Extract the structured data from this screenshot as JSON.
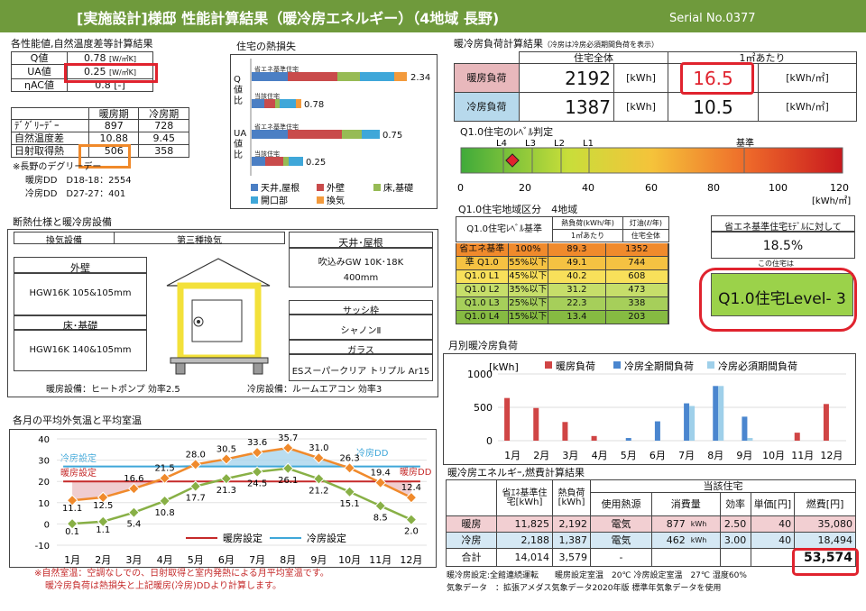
{
  "header": {
    "title": "[実施設計]様邸 性能計算結果（暖冷房エネルギー）（4地域 長野)",
    "serial": "Serial No.0377"
  },
  "perf": {
    "title": "各性能値,自然温度差等計算結果",
    "rows": [
      {
        "label": "Q値",
        "value": "0.78",
        "unit": "[W/㎡K]"
      },
      {
        "label": "UA値",
        "value": "0.25",
        "unit": "[W/㎡K]"
      },
      {
        "label": "ηAC値",
        "value": "0.8",
        "unit": "[-]"
      }
    ]
  },
  "period": {
    "headers": [
      "",
      "暖房期",
      "冷房期"
    ],
    "rows": [
      [
        "ﾃﾞｸﾞﾘｰﾃﾞｰ",
        "897",
        "728"
      ],
      [
        "自然温度差",
        "10.88",
        "9.45"
      ],
      [
        "日射取得熱",
        "506",
        "358"
      ]
    ],
    "note": "※長野のデグリーデー",
    "dd_heat": "暖房DD　D18-18：2554",
    "dd_cool": "冷房DD　D27-27：401"
  },
  "heatloss": {
    "title": "住宅の熱損失",
    "q_label": "Q値比",
    "ua_label": "UA値比",
    "bars": [
      {
        "name": "省エネ基準住宅",
        "value": "2.34"
      },
      {
        "name": "当該住宅",
        "value": "0.78"
      },
      {
        "name": "省エネ基準住宅",
        "value": "0.75"
      },
      {
        "name": "当該住宅",
        "value": "0.25"
      }
    ],
    "legend": [
      "天井,屋根",
      "外壁",
      "床,基礎",
      "開口部",
      "換気"
    ],
    "colors": {
      "ceiling": "#4b7fc4",
      "wall": "#c94b4b",
      "floor": "#97bb55",
      "opening": "#3fa7d9",
      "vent": "#f39a3c"
    }
  },
  "load": {
    "title": "暖冷房負荷計算結果",
    "note": "（冷房は冷房必須期間負荷を表示）",
    "col1": "住宅全体",
    "col2": "1㎡あたり",
    "rows": [
      {
        "label": "暖房負荷",
        "total": "2192",
        "unit": "[kWh]",
        "per": "16.5",
        "perunit": "[kWh/㎡]"
      },
      {
        "label": "冷房負荷",
        "total": "1387",
        "unit": "[kWh]",
        "per": "10.5",
        "perunit": "[kWh/㎡]"
      }
    ]
  },
  "level": {
    "title": "Q1.0住宅のﾚﾍﾞﾙ判定",
    "marks": [
      "L4",
      "L3",
      "L2",
      "L1"
    ],
    "base": "基準",
    "ticks": [
      "0",
      "20",
      "40",
      "60",
      "80",
      "100",
      "120"
    ],
    "unit": "[kWh/㎡]",
    "marker_value": 16.5
  },
  "q1": {
    "title": "Q1.0住宅地域区分",
    "region": "4地域",
    "headers": [
      "Q1.0住宅ﾚﾍﾞﾙ基準",
      "熱負荷(kWh/年)",
      "灯油(ℓ/年)"
    ],
    "sub": [
      "1㎡あたり",
      "住宅全体"
    ],
    "rows": [
      [
        "省エネ基準",
        "100%",
        "89.3",
        "1352"
      ],
      [
        "準 Q1.0",
        "55%以下",
        "49.1",
        "744"
      ],
      [
        "Q1.0 L1",
        "45%以下",
        "40.2",
        "608"
      ],
      [
        "Q1.0 L2",
        "35%以下",
        "31.2",
        "473"
      ],
      [
        "Q1.0 L3",
        "25%以下",
        "22.3",
        "338"
      ],
      [
        "Q1.0 L4",
        "15%以下",
        "13.4",
        "203"
      ]
    ],
    "colors": [
      "#f08a2c",
      "#f5c242",
      "#f8e05a",
      "#c6de6a",
      "#a6cf5a",
      "#86bb42"
    ]
  },
  "ratio": {
    "title": "省エネ基準住宅ﾓﾃﾞﾙに対して",
    "value": "18.5%",
    "sub": "この住宅は",
    "result": "Q1.0住宅Level- 3"
  },
  "spec": {
    "title": "断熱仕様と暖冷房設備",
    "vent_label": "換気設備",
    "vent_value": "第三種換気",
    "wall_label": "外壁",
    "wall_value": "HGW16K  105&105mm",
    "floor_label": "床･基礎",
    "floor_value": "HGW16K  140&105mm",
    "roof_label": "天井･屋根",
    "roof_value1": "吹込みGW 10K･18K",
    "roof_value2": "400mm",
    "sash_label": "サッシ枠",
    "sash_value": "シャノンⅡ",
    "glass_label": "ガラス",
    "glass_value": "ESスーパークリア トリプル Ar15",
    "heat_eq": "暖房設備：ヒートポンプ  効率2.5",
    "cool_eq": "冷房設備：ルームエアコン  効率3"
  },
  "monthly_load": {
    "title": "月別暖冷房負荷",
    "unit": "[kWh]",
    "legend": [
      "暖房負荷",
      "冷房全期間負荷",
      "冷房必須期間負荷"
    ],
    "colors": {
      "heat": "#d04545",
      "cool_all": "#4a86cf",
      "cool_req": "#9fd0ea"
    }
  },
  "temp": {
    "title": "各月の平均外気温と平均室温",
    "legend": [
      "暖房設定",
      "冷房設定"
    ],
    "labels": [
      "冷房設定",
      "暖房設定",
      "冷房DD",
      "暖房DD"
    ],
    "notes": [
      "※自然室温：空調なしでの、日射取得と室内発熱による月平均室温です。",
      "暖冷房負荷は熱損失と上記暖房(冷房)DDより計算します。"
    ]
  },
  "energy": {
    "title": "暖冷房エネルギｰ,燃費計算結果",
    "headers": [
      "省ｴﾈ基準住宅[kWh]",
      "熱負荷[kWh]",
      "当該住宅",
      "使用熱源",
      "消費量",
      "効率",
      "単価[円]",
      "燃費[円]"
    ],
    "rows": [
      [
        "暖房",
        "11,825",
        "2,192",
        "電気",
        "877",
        "kWh",
        "2.50",
        "40",
        "35,080"
      ],
      [
        "冷房",
        "2,188",
        "1,387",
        "電気",
        "462",
        "kWh",
        "3.00",
        "40",
        "18,494"
      ],
      [
        "合計",
        "14,014",
        "3,579",
        "-",
        "",
        "",
        "",
        "",
        "53,574"
      ]
    ],
    "foot1": "暖冷房設定:全館連続運転　　暖房設定室温　20℃ 冷房設定室温　27℃ 湿度60%",
    "foot2": "気象データ　：拡張アメダス気象データ2020年版 標準年気象データを使用"
  },
  "chart_data": [
    {
      "type": "bar",
      "title": "月別暖冷房負荷",
      "ylabel": "[kWh]",
      "ylim": [
        0,
        1000
      ],
      "categories": [
        "1月",
        "2月",
        "3月",
        "4月",
        "5月",
        "6月",
        "7月",
        "8月",
        "9月",
        "10月",
        "11月",
        "12月"
      ],
      "series": [
        {
          "name": "暖房負荷",
          "values": [
            640,
            490,
            280,
            70,
            0,
            0,
            0,
            0,
            0,
            0,
            120,
            550
          ]
        },
        {
          "name": "冷房全期間負荷",
          "values": [
            0,
            0,
            0,
            0,
            40,
            290,
            560,
            820,
            360,
            0,
            0,
            0
          ]
        },
        {
          "name": "冷房必須期間負荷",
          "values": [
            0,
            0,
            0,
            0,
            0,
            0,
            520,
            820,
            40,
            0,
            0,
            0
          ]
        }
      ]
    },
    {
      "type": "line",
      "title": "各月の平均外気温と平均室温",
      "ylim": [
        -10,
        40
      ],
      "categories": [
        "1月",
        "2月",
        "3月",
        "4月",
        "5月",
        "6月",
        "7月",
        "8月",
        "9月",
        "10月",
        "11月",
        "12月"
      ],
      "series": [
        {
          "name": "自然室温",
          "values": [
            11.1,
            12.5,
            16.6,
            21.5,
            28.0,
            30.5,
            33.6,
            35.7,
            31.0,
            26.3,
            19.4,
            12.4
          ]
        },
        {
          "name": "外気温",
          "values": [
            0.1,
            1.1,
            5.4,
            10.8,
            17.7,
            21.3,
            24.5,
            26.1,
            21.2,
            15.1,
            8.5,
            2.0
          ]
        },
        {
          "name": "暖房設定",
          "values": [
            20,
            20,
            20,
            20,
            20,
            20,
            20,
            20,
            20,
            20,
            20,
            20
          ]
        },
        {
          "name": "冷房設定",
          "values": [
            27,
            27,
            27,
            27,
            27,
            27,
            27,
            27,
            27,
            27,
            27,
            27
          ]
        }
      ]
    }
  ]
}
